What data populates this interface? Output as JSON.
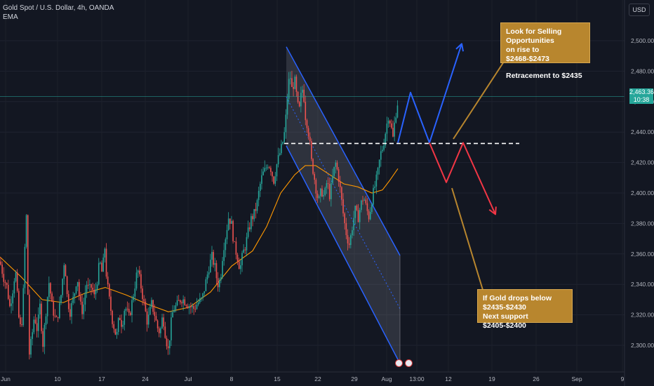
{
  "header": {
    "symbol_line": "Gold Spot / U.S. Dollar, 4h, OANDA",
    "indicator": "EMA"
  },
  "currency_button": "USD",
  "price_tag": {
    "price": "2,463.365",
    "countdown": "10:38"
  },
  "notes": {
    "top_line1": "Look for Selling Opportunities",
    "top_line2": "on rise to $2468-$2473",
    "top_line3": "Retracement to $2435",
    "bottom_line1": "If Gold drops below $2435-$2430",
    "bottom_line2": "Next support $2405-$2400"
  },
  "chart_data": {
    "type": "candlestick",
    "symbol": "Gold Spot / U.S. Dollar",
    "interval": "4h",
    "source": "OANDA",
    "indicators": [
      "EMA"
    ],
    "ylim": [
      2288,
      2512
    ],
    "y_ticks": [
      2300,
      2320,
      2340,
      2360,
      2380,
      2400,
      2420,
      2440,
      2460,
      2480,
      2500
    ],
    "y_tick_labels": [
      "2,300.000",
      "2,320.000",
      "2,340.000",
      "2,360.000",
      "2,380.000",
      "2,400.000",
      "2,420.000",
      "2,440.000",
      "2,460.000",
      "2,480.000",
      "2,500.000"
    ],
    "x_tick_labels": [
      "Jun",
      "10",
      "17",
      "24",
      "Jul",
      "8",
      "15",
      "22",
      "29",
      "Aug",
      "13:00",
      "12",
      "19",
      "26",
      "Sep",
      "9"
    ],
    "last_price": 2463.365,
    "path": [
      [
        0,
        2355
      ],
      [
        5,
        2345
      ],
      [
        10,
        2338
      ],
      [
        14,
        2325
      ],
      [
        18,
        2336
      ],
      [
        22,
        2350
      ],
      [
        28,
        2310
      ],
      [
        32,
        2318
      ],
      [
        36,
        2372
      ],
      [
        38,
        2388
      ],
      [
        41,
        2292
      ],
      [
        45,
        2304
      ],
      [
        49,
        2320
      ],
      [
        53,
        2310
      ],
      [
        57,
        2326
      ],
      [
        61,
        2300
      ],
      [
        66,
        2325
      ],
      [
        70,
        2342
      ],
      [
        74,
        2326
      ],
      [
        80,
        2315
      ],
      [
        86,
        2328
      ],
      [
        92,
        2358
      ],
      [
        96,
        2330
      ],
      [
        100,
        2322
      ],
      [
        106,
        2334
      ],
      [
        110,
        2346
      ],
      [
        114,
        2327
      ],
      [
        118,
        2322
      ],
      [
        123,
        2341
      ],
      [
        127,
        2336
      ],
      [
        131,
        2339
      ],
      [
        134,
        2331
      ],
      [
        138,
        2341
      ],
      [
        142,
        2355
      ],
      [
        146,
        2346
      ],
      [
        149,
        2367
      ],
      [
        152,
        2343
      ],
      [
        156,
        2329
      ],
      [
        160,
        2317
      ],
      [
        166,
        2305
      ],
      [
        170,
        2320
      ],
      [
        174,
        2313
      ],
      [
        178,
        2326
      ],
      [
        184,
        2318
      ],
      [
        190,
        2333
      ],
      [
        196,
        2350
      ],
      [
        202,
        2336
      ],
      [
        206,
        2325
      ],
      [
        210,
        2315
      ],
      [
        216,
        2327
      ],
      [
        220,
        2321
      ],
      [
        224,
        2312
      ],
      [
        228,
        2308
      ],
      [
        232,
        2320
      ],
      [
        236,
        2306
      ],
      [
        240,
        2296
      ],
      [
        243,
        2312
      ],
      [
        247,
        2324
      ],
      [
        252,
        2326
      ],
      [
        258,
        2331
      ],
      [
        264,
        2329
      ],
      [
        270,
        2326
      ],
      [
        276,
        2324
      ],
      [
        282,
        2328
      ],
      [
        288,
        2330
      ],
      [
        294,
        2343
      ],
      [
        298,
        2352
      ],
      [
        302,
        2358
      ],
      [
        306,
        2352
      ],
      [
        310,
        2340
      ],
      [
        314,
        2343
      ],
      [
        318,
        2363
      ],
      [
        322,
        2373
      ],
      [
        326,
        2385
      ],
      [
        330,
        2379
      ],
      [
        334,
        2365
      ],
      [
        338,
        2359
      ],
      [
        342,
        2350
      ],
      [
        346,
        2360
      ],
      [
        350,
        2366
      ],
      [
        354,
        2375
      ],
      [
        358,
        2383
      ],
      [
        362,
        2386
      ],
      [
        366,
        2392
      ],
      [
        370,
        2404
      ],
      [
        374,
        2412
      ],
      [
        378,
        2415
      ],
      [
        382,
        2420
      ],
      [
        386,
        2416
      ],
      [
        390,
        2408
      ],
      [
        394,
        2418
      ],
      [
        398,
        2425
      ],
      [
        402,
        2431
      ],
      [
        406,
        2441
      ],
      [
        410,
        2466
      ],
      [
        413,
        2479
      ],
      [
        416,
        2468
      ],
      [
        420,
        2474
      ],
      [
        423,
        2462
      ],
      [
        426,
        2452
      ],
      [
        429,
        2464
      ],
      [
        432,
        2470
      ],
      [
        435,
        2451
      ],
      [
        438,
        2445
      ],
      [
        441,
        2435
      ],
      [
        444,
        2420
      ],
      [
        447,
        2413
      ],
      [
        450,
        2404
      ],
      [
        454,
        2394
      ],
      [
        458,
        2402
      ],
      [
        462,
        2397
      ],
      [
        466,
        2408
      ],
      [
        470,
        2398
      ],
      [
        474,
        2410
      ],
      [
        478,
        2420
      ],
      [
        482,
        2412
      ],
      [
        486,
        2398
      ],
      [
        490,
        2383
      ],
      [
        494,
        2372
      ],
      [
        498,
        2366
      ],
      [
        502,
        2378
      ],
      [
        506,
        2389
      ],
      [
        510,
        2383
      ],
      [
        514,
        2392
      ],
      [
        518,
        2398
      ],
      [
        522,
        2390
      ],
      [
        526,
        2384
      ],
      [
        530,
        2396
      ],
      [
        534,
        2404
      ],
      [
        538,
        2412
      ],
      [
        542,
        2425
      ],
      [
        546,
        2431
      ],
      [
        550,
        2442
      ],
      [
        554,
        2452
      ],
      [
        557,
        2444
      ],
      [
        560,
        2436
      ],
      [
        563,
        2449
      ],
      [
        566,
        2458
      ],
      [
        568,
        2463
      ]
    ],
    "ema": [
      [
        0,
        2358
      ],
      [
        30,
        2345
      ],
      [
        60,
        2330
      ],
      [
        90,
        2328
      ],
      [
        120,
        2334
      ],
      [
        150,
        2338
      ],
      [
        180,
        2333
      ],
      [
        210,
        2327
      ],
      [
        240,
        2322
      ],
      [
        270,
        2325
      ],
      [
        300,
        2335
      ],
      [
        330,
        2352
      ],
      [
        360,
        2362
      ],
      [
        380,
        2378
      ],
      [
        400,
        2400
      ],
      [
        420,
        2412
      ],
      [
        435,
        2418
      ],
      [
        450,
        2418
      ],
      [
        470,
        2412
      ],
      [
        490,
        2406
      ],
      [
        510,
        2404
      ],
      [
        530,
        2400
      ],
      [
        545,
        2402
      ],
      [
        555,
        2408
      ],
      [
        567,
        2416
      ]
    ],
    "channel": {
      "upper": [
        [
          408,
          2496
        ],
        [
          570,
          2359
        ]
      ],
      "lower": [
        [
          408,
          2431
        ],
        [
          570,
          2288
        ]
      ],
      "mid_dotted": [
        [
          408,
          2463
        ],
        [
          570,
          2324
        ]
      ]
    },
    "resistance_level": {
      "price": 2432.5,
      "x_range": [
        405,
        740
      ],
      "style": "dashed",
      "color": "#ffffff"
    },
    "projection_up": {
      "path": [
        [
          567,
          2433
        ],
        [
          585,
          2466
        ],
        [
          612,
          2433
        ],
        [
          658,
          2498
        ]
      ],
      "color": "#2962ff"
    },
    "projection_down": {
      "path": [
        [
          612,
          2433
        ],
        [
          636,
          2407
        ],
        [
          660,
          2433
        ],
        [
          706,
          2386
        ]
      ],
      "color": "#f23645"
    },
    "colors": {
      "up": "#26a69a",
      "down": "#ef5350",
      "ema": "#ff9800",
      "channel": "#2962ff",
      "last_price_line": "#26a69a"
    }
  }
}
